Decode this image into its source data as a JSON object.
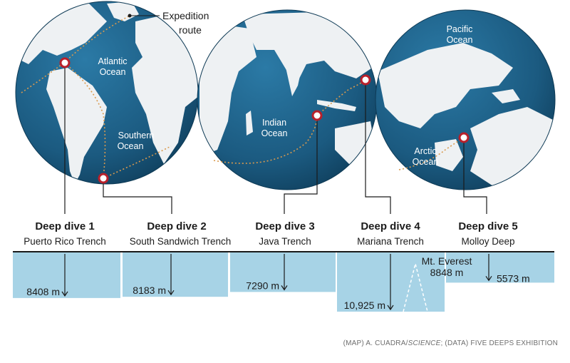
{
  "labels": {
    "expedition_route_line1": "Expedition",
    "expedition_route_line2": "route",
    "oceans": {
      "atlantic_1": "Atlantic",
      "atlantic_2": "Ocean",
      "southern_1": "Southern",
      "southern_2": "Ocean",
      "indian_1": "Indian",
      "indian_2": "Ocean",
      "pacific_1": "Pacific",
      "pacific_2": "Ocean",
      "arctic_1": "Arctic",
      "arctic_2": "Ocean"
    }
  },
  "dives": [
    {
      "title": "Deep dive 1",
      "location": "Puerto Rico Trench",
      "depth_label": "8408 m",
      "depth_m": 8408
    },
    {
      "title": "Deep dive 2",
      "location": "South Sandwich Trench",
      "depth_label": "8183 m",
      "depth_m": 8183
    },
    {
      "title": "Deep dive 3",
      "location": "Java Trench",
      "depth_label": "7290 m",
      "depth_m": 7290
    },
    {
      "title": "Deep dive 4",
      "location": "Mariana Trench",
      "depth_label": "10,925 m",
      "depth_m": 10925
    },
    {
      "title": "Deep dive 5",
      "location": "Molloy Deep",
      "depth_label": "5573 m",
      "depth_m": 5573
    }
  ],
  "everest": {
    "label_line1": "Mt. Everest",
    "label_line2": "8848 m",
    "height_m": 8848
  },
  "credit": {
    "prefix": "(MAP) A. CUADRA/",
    "italic": "SCIENCE",
    "suffix": "; (DATA) FIVE DEEPS EXHIBITION"
  },
  "colors": {
    "ocean": "#1e5f86",
    "land": "#eef1f3",
    "water_bar": "#a7d3e6",
    "marker": "#b8202b",
    "route": "#d99a4e"
  }
}
